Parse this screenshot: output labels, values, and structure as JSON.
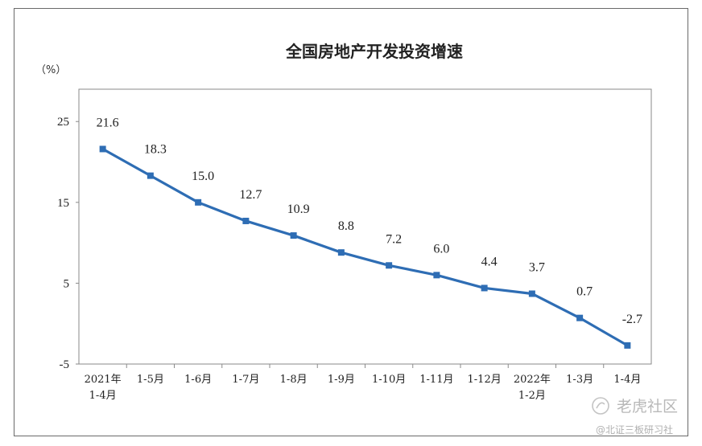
{
  "chart_data": {
    "type": "line",
    "title": "全国房地产开发投资增速",
    "unit_label": "（%）",
    "categories": [
      [
        "2021年",
        "1-4月"
      ],
      [
        "1-5月"
      ],
      [
        "1-6月"
      ],
      [
        "1-7月"
      ],
      [
        "1-8月"
      ],
      [
        "1-9月"
      ],
      [
        "1-10月"
      ],
      [
        "1-11月"
      ],
      [
        "1-12月"
      ],
      [
        "2022年",
        "1-2月"
      ],
      [
        "1-3月"
      ],
      [
        "1-4月"
      ]
    ],
    "values": [
      21.6,
      18.3,
      15.0,
      12.7,
      10.9,
      8.8,
      7.2,
      6.0,
      4.4,
      3.7,
      0.7,
      -2.7
    ],
    "value_labels": [
      "21.6",
      "18.3",
      "15.0",
      "12.7",
      "10.9",
      "8.8",
      "7.2",
      "6.0",
      "4.4",
      "3.7",
      "0.7",
      "-2.7"
    ],
    "yticks": [
      -5,
      5,
      15,
      25
    ],
    "ytick_labels": [
      "-5",
      "5",
      "15",
      "25"
    ],
    "ylim": [
      -5,
      29
    ],
    "line_color": "#2e6db4",
    "marker": "square",
    "grid": false,
    "legend": "none"
  },
  "watermark": {
    "main": "老虎社区",
    "sub": "@北证三板研习社"
  }
}
